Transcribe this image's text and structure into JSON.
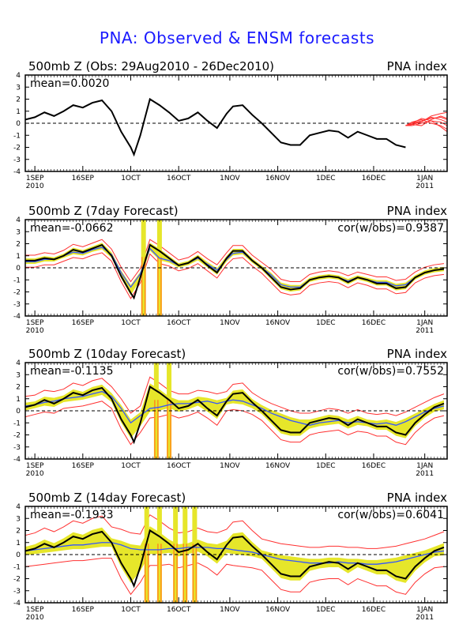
{
  "title": "PNA: Observed & ENSM forecasts",
  "colors": {
    "title": "#1a1aff",
    "observed": "#000000",
    "spread": "#e6e62a",
    "ensemble_mean": "#3355ff",
    "ensemble_range": "#ff3030",
    "forecast_member": "#ff3030",
    "missing": "#ff8c1a"
  },
  "x_axis": {
    "ticks": [
      {
        "label": "1SEP",
        "sub": "2010"
      },
      {
        "label": "16SEP",
        "sub": ""
      },
      {
        "label": "1OCT",
        "sub": ""
      },
      {
        "label": "16OCT",
        "sub": ""
      },
      {
        "label": "1NOV",
        "sub": ""
      },
      {
        "label": "16NOV",
        "sub": ""
      },
      {
        "label": "1DEC",
        "sub": ""
      },
      {
        "label": "16DEC",
        "sub": ""
      },
      {
        "label": "1JAN",
        "sub": "2011"
      }
    ],
    "tick_days": [
      0,
      15,
      30,
      45,
      61,
      76,
      91,
      106,
      122
    ]
  },
  "chart_data": [
    {
      "type": "line",
      "title_left": "500mb Z (Obs: 29Aug2010 - 26Dec2010)",
      "title_right": "PNA index",
      "mean_label": "mean=0.0020",
      "cor_label": "",
      "ylim": [
        -4,
        4
      ],
      "yticks": [
        -4,
        -3,
        -2,
        -1,
        0,
        1,
        2,
        3,
        4
      ],
      "x_unit": "days since 1SEP2010",
      "series": [
        {
          "role": "observed",
          "x": [
            -3,
            0,
            3,
            6,
            9,
            12,
            15,
            18,
            21,
            24,
            27,
            30,
            31,
            33,
            36,
            39,
            42,
            45,
            48,
            51,
            54,
            57,
            60,
            62,
            65,
            68,
            71,
            74,
            77,
            80,
            83,
            86,
            89,
            92,
            95,
            98,
            101,
            104,
            107,
            110,
            113,
            116
          ],
          "y": [
            0.3,
            0.5,
            0.9,
            0.6,
            1.0,
            1.5,
            1.3,
            1.7,
            1.9,
            1.0,
            -0.7,
            -2.0,
            -2.6,
            -1.0,
            2.0,
            1.5,
            0.9,
            0.2,
            0.4,
            0.9,
            0.2,
            -0.4,
            0.8,
            1.4,
            1.5,
            0.7,
            0.0,
            -0.8,
            -1.6,
            -1.8,
            -1.8,
            -1.0,
            -0.8,
            -0.6,
            -0.7,
            -1.2,
            -0.7,
            -1.0,
            -1.3,
            -1.3,
            -1.8,
            -2.0
          ]
        },
        {
          "role": "forecast_members",
          "x": [
            116,
            118,
            121,
            124,
            127,
            129
          ],
          "members": [
            [
              -0.2,
              0.0,
              0.2,
              0.4,
              0.5,
              0.3
            ],
            [
              -0.2,
              -0.1,
              0.1,
              0.6,
              0.8,
              0.9
            ],
            [
              -0.2,
              -0.2,
              0.0,
              0.2,
              0.1,
              -0.2
            ],
            [
              -0.2,
              0.0,
              0.4,
              0.2,
              -0.3,
              -0.7
            ],
            [
              -0.2,
              -0.1,
              -0.2,
              0.3,
              0.6,
              0.4
            ],
            [
              -0.2,
              0.1,
              0.3,
              0.0,
              -0.2,
              -0.5
            ],
            [
              -0.2,
              -0.1,
              0.2,
              0.5,
              0.3,
              0.1
            ]
          ]
        }
      ]
    },
    {
      "type": "line",
      "title_left": "500mb Z (7day Forecast)",
      "title_right": "PNA index",
      "mean_label": "mean=-0.0662",
      "cor_label": "cor(w/obs)=0.9387",
      "ylim": [
        -4,
        4
      ],
      "yticks": [
        -4,
        -3,
        -2,
        -1,
        0,
        1,
        2,
        3,
        4
      ],
      "x_unit": "days since 1SEP2010",
      "spread_lead": 0.35,
      "range_lead": 0.45,
      "missing_days": [
        34,
        39
      ],
      "series": [
        {
          "role": "observed",
          "x": [
            -3,
            0,
            3,
            6,
            9,
            12,
            15,
            18,
            21,
            24,
            27,
            30,
            31,
            33,
            36,
            39,
            42,
            45,
            48,
            51,
            54,
            57,
            60,
            62,
            65,
            68,
            71,
            74,
            77,
            80,
            83,
            86,
            89,
            92,
            95,
            98,
            101,
            104,
            107,
            110,
            113,
            116,
            119,
            122,
            125,
            128
          ],
          "y": [
            0.6,
            0.6,
            0.8,
            0.7,
            1.0,
            1.5,
            1.3,
            1.6,
            1.9,
            1.0,
            -0.7,
            -2.1,
            -2.5,
            -0.8,
            1.9,
            1.4,
            0.8,
            0.2,
            0.4,
            0.9,
            0.2,
            -0.4,
            0.8,
            1.4,
            1.4,
            0.6,
            0.0,
            -0.8,
            -1.6,
            -1.8,
            -1.7,
            -1.0,
            -0.8,
            -0.7,
            -0.8,
            -1.2,
            -0.8,
            -1.0,
            -1.3,
            -1.3,
            -1.7,
            -1.6,
            -0.8,
            -0.4,
            -0.2,
            -0.1
          ]
        },
        {
          "role": "ensemble_mean",
          "x": [
            -3,
            0,
            3,
            6,
            9,
            12,
            15,
            18,
            21,
            24,
            27,
            30,
            33,
            36,
            39,
            42,
            45,
            48,
            51,
            54,
            57,
            60,
            62,
            65,
            68,
            71,
            74,
            77,
            80,
            83,
            86,
            89,
            92,
            95,
            98,
            101,
            104,
            107,
            110,
            113,
            116,
            119,
            122,
            125,
            128
          ],
          "y": [
            0.5,
            0.5,
            0.7,
            0.7,
            1.0,
            1.3,
            1.2,
            1.5,
            1.7,
            1.1,
            -0.4,
            -1.6,
            -0.5,
            1.6,
            0.8,
            0.6,
            0.2,
            0.4,
            0.8,
            0.3,
            -0.2,
            0.7,
            1.2,
            1.3,
            0.6,
            0.0,
            -0.6,
            -1.4,
            -1.6,
            -1.6,
            -1.0,
            -0.8,
            -0.7,
            -0.8,
            -1.1,
            -0.8,
            -1.0,
            -1.2,
            -1.2,
            -1.5,
            -1.4,
            -0.8,
            -0.4,
            -0.2,
            -0.1
          ]
        }
      ]
    },
    {
      "type": "line",
      "title_left": "500mb Z (10day Forecast)",
      "title_right": "PNA index",
      "mean_label": "mean=-0.1135",
      "cor_label": "cor(w/obs)=0.7552",
      "ylim": [
        -4,
        4
      ],
      "yticks": [
        -4,
        -3,
        -2,
        -1,
        0,
        1,
        2,
        3,
        4
      ],
      "x_unit": "days since 1SEP2010",
      "spread_lead": 0.55,
      "range_lead": 0.8,
      "missing_days": [
        38,
        42
      ],
      "series": [
        {
          "role": "observed",
          "x": [
            -3,
            0,
            3,
            6,
            9,
            12,
            15,
            18,
            21,
            24,
            27,
            30,
            31,
            33,
            36,
            39,
            42,
            45,
            48,
            51,
            54,
            57,
            60,
            62,
            65,
            68,
            71,
            74,
            77,
            80,
            83,
            86,
            89,
            92,
            95,
            98,
            101,
            104,
            107,
            110,
            113,
            116,
            119,
            122,
            125,
            128
          ],
          "y": [
            0.3,
            0.5,
            0.9,
            0.6,
            1.0,
            1.5,
            1.3,
            1.7,
            1.9,
            1.0,
            -0.7,
            -2.0,
            -2.6,
            -1.0,
            2.0,
            1.5,
            0.9,
            0.2,
            0.4,
            0.9,
            0.2,
            -0.4,
            0.8,
            1.4,
            1.5,
            0.7,
            0.0,
            -0.8,
            -1.6,
            -1.8,
            -1.8,
            -1.0,
            -0.8,
            -0.6,
            -0.7,
            -1.2,
            -0.7,
            -1.0,
            -1.3,
            -1.3,
            -1.8,
            -2.0,
            -1.0,
            -0.3,
            0.3,
            0.6
          ]
        },
        {
          "role": "ensemble_mean",
          "x": [
            -3,
            0,
            3,
            6,
            9,
            12,
            15,
            18,
            21,
            24,
            27,
            30,
            33,
            36,
            39,
            42,
            45,
            48,
            51,
            54,
            57,
            60,
            62,
            65,
            68,
            71,
            74,
            77,
            80,
            83,
            86,
            89,
            92,
            95,
            98,
            101,
            104,
            107,
            110,
            113,
            116,
            119,
            122,
            125,
            128
          ],
          "y": [
            0.4,
            0.5,
            0.7,
            0.8,
            1.0,
            1.1,
            1.2,
            1.4,
            1.6,
            1.2,
            0.2,
            -1.0,
            -0.4,
            0.2,
            0.3,
            0.5,
            0.6,
            0.6,
            0.7,
            0.8,
            0.6,
            0.8,
            0.9,
            0.8,
            0.5,
            0.2,
            -0.2,
            -0.5,
            -0.8,
            -1.0,
            -1.2,
            -1.0,
            -0.9,
            -0.8,
            -1.0,
            -0.9,
            -1.0,
            -1.1,
            -1.0,
            -1.2,
            -0.9,
            -0.5,
            -0.1,
            0.2,
            0.4
          ]
        }
      ]
    },
    {
      "type": "line",
      "title_left": "500mb Z (14day Forecast)",
      "title_right": "PNA index",
      "mean_label": "mean=-0.1933",
      "cor_label": "cor(w/obs)=0.6041",
      "ylim": [
        -4,
        4
      ],
      "yticks": [
        -4,
        -3,
        -2,
        -1,
        0,
        1,
        2,
        3,
        4
      ],
      "x_unit": "days since 1SEP2010",
      "spread_lead": 0.7,
      "range_lead": 1.3,
      "missing_days": [
        35,
        39,
        44,
        47,
        50
      ],
      "series": [
        {
          "role": "observed",
          "x": [
            -3,
            0,
            3,
            6,
            9,
            12,
            15,
            18,
            21,
            24,
            27,
            30,
            31,
            33,
            36,
            39,
            42,
            45,
            48,
            51,
            54,
            57,
            60,
            62,
            65,
            68,
            71,
            74,
            77,
            80,
            83,
            86,
            89,
            92,
            95,
            98,
            101,
            104,
            107,
            110,
            113,
            116,
            119,
            122,
            125,
            128
          ],
          "y": [
            0.3,
            0.5,
            0.9,
            0.6,
            1.0,
            1.5,
            1.3,
            1.7,
            1.9,
            1.0,
            -0.7,
            -2.0,
            -2.6,
            -1.0,
            2.0,
            1.5,
            0.9,
            0.2,
            0.4,
            0.9,
            0.2,
            -0.4,
            0.8,
            1.4,
            1.5,
            0.7,
            0.0,
            -0.8,
            -1.6,
            -1.8,
            -1.8,
            -1.0,
            -0.8,
            -0.6,
            -0.7,
            -1.2,
            -0.7,
            -1.0,
            -1.3,
            -1.3,
            -1.8,
            -2.0,
            -1.0,
            -0.3,
            0.3,
            0.6
          ]
        },
        {
          "role": "ensemble_mean",
          "x": [
            -3,
            0,
            3,
            6,
            9,
            12,
            15,
            18,
            21,
            24,
            27,
            30,
            33,
            36,
            39,
            42,
            45,
            48,
            51,
            54,
            57,
            60,
            62,
            65,
            68,
            71,
            74,
            77,
            80,
            83,
            86,
            89,
            92,
            95,
            98,
            101,
            104,
            107,
            110,
            113,
            116,
            119,
            122,
            125,
            128
          ],
          "y": [
            0.3,
            0.4,
            0.5,
            0.6,
            0.7,
            0.8,
            0.8,
            0.9,
            1.0,
            1.0,
            0.8,
            0.5,
            0.4,
            0.4,
            0.4,
            0.5,
            0.5,
            0.6,
            0.6,
            0.6,
            0.5,
            0.5,
            0.4,
            0.3,
            0.2,
            0.0,
            -0.2,
            -0.4,
            -0.5,
            -0.6,
            -0.7,
            -0.7,
            -0.7,
            -0.6,
            -0.7,
            -0.7,
            -0.8,
            -0.8,
            -0.7,
            -0.6,
            -0.4,
            -0.2,
            0.0,
            0.2,
            0.3
          ]
        }
      ]
    }
  ]
}
